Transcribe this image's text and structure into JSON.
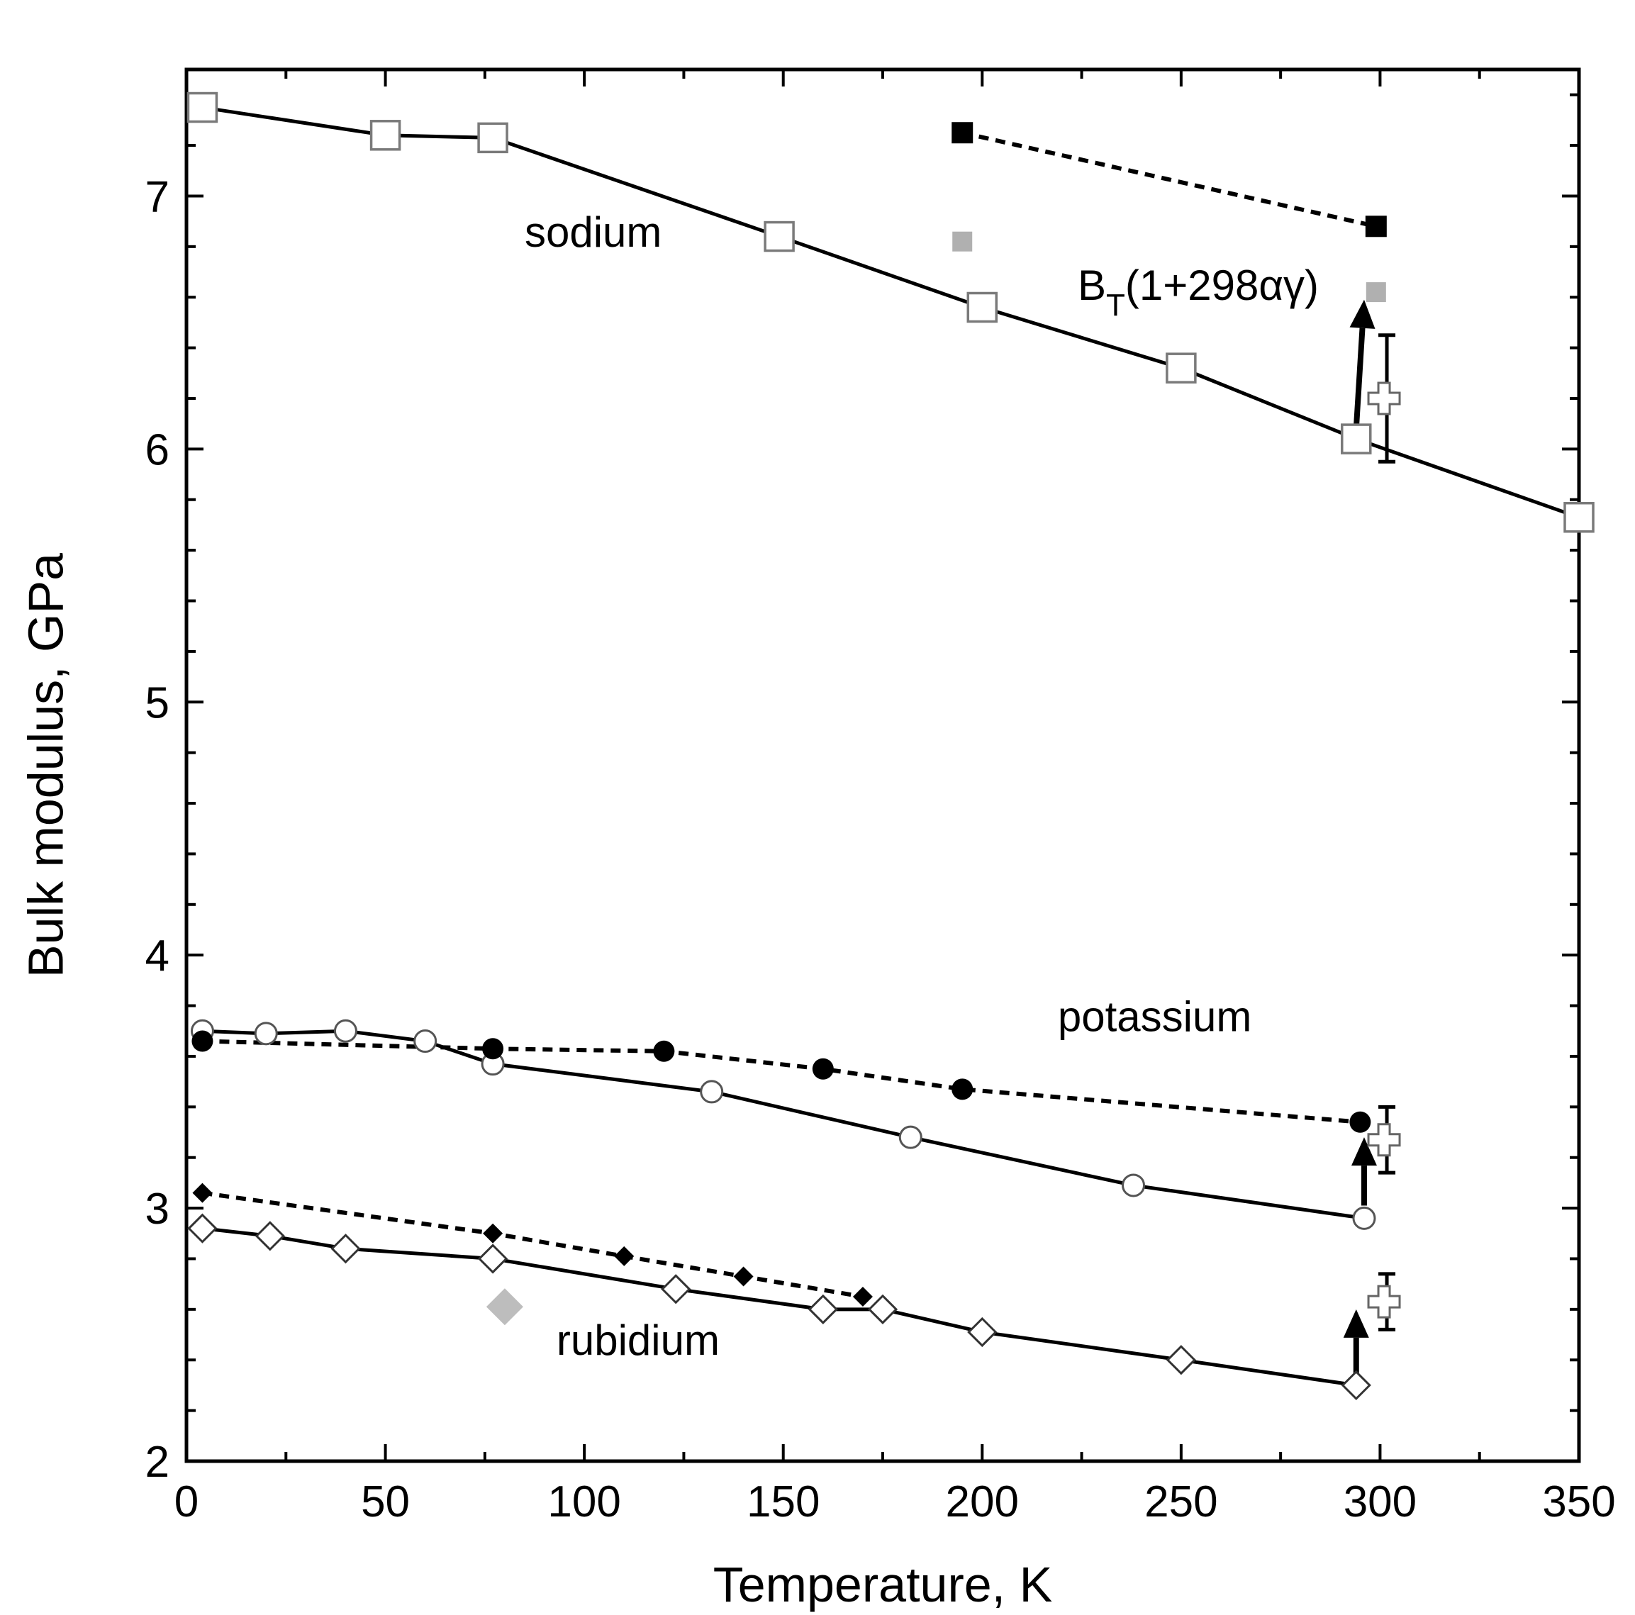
{
  "chart_data": {
    "type": "scatter",
    "title": "",
    "xlabel": "Temperature, K",
    "ylabel": "Bulk modulus, GPa",
    "xlim": [
      0,
      350
    ],
    "ylim": [
      2,
      7.5
    ],
    "xticks": [
      0,
      50,
      100,
      150,
      200,
      250,
      300,
      350
    ],
    "yticks": [
      2,
      3,
      4,
      5,
      6,
      7
    ],
    "xtick_labels": [
      "0",
      "50",
      "100",
      "150",
      "200",
      "250",
      "300",
      "350"
    ],
    "ytick_labels": [
      "2",
      "3",
      "4",
      "5",
      "6",
      "7"
    ],
    "grid": false,
    "annotations": [
      {
        "text": "sodium",
        "x": 85,
        "y": 6.8
      },
      {
        "text": "potassium",
        "x": 219,
        "y": 3.7
      },
      {
        "text": "rubidium",
        "x": 93,
        "y": 2.42
      },
      {
        "text": "B",
        "sub": "T",
        "rest": "(1+298αγ)",
        "x": 224,
        "y": 6.59
      }
    ],
    "series": [
      {
        "name": "sodium open squares",
        "marker": "open-square",
        "line": "solid",
        "color": "#000000",
        "x": [
          4,
          50,
          77,
          149,
          200,
          250,
          294,
          350
        ],
        "y": [
          7.35,
          7.24,
          7.23,
          6.84,
          6.56,
          6.32,
          6.04,
          5.73
        ]
      },
      {
        "name": "sodium filled squares",
        "marker": "filled-square",
        "line": "dotted",
        "color": "#000000",
        "x": [
          195,
          299
        ],
        "y": [
          7.25,
          6.88
        ]
      },
      {
        "name": "sodium gray squares",
        "marker": "gray-square",
        "line": "none",
        "color": "#b0b0b0",
        "x": [
          195,
          299
        ],
        "y": [
          6.82,
          6.62
        ]
      },
      {
        "name": "sodium cross",
        "marker": "open-cross",
        "line": "none",
        "color": "#000000",
        "x": [
          301
        ],
        "y": [
          6.2
        ],
        "err": [
          0.25
        ]
      },
      {
        "name": "potassium open circles",
        "marker": "open-circle",
        "line": "solid",
        "color": "#000000",
        "x": [
          4,
          20,
          40,
          60,
          77,
          132,
          182,
          238,
          296
        ],
        "y": [
          3.7,
          3.69,
          3.7,
          3.66,
          3.57,
          3.46,
          3.28,
          3.09,
          2.96
        ]
      },
      {
        "name": "potassium filled circles",
        "marker": "filled-circle",
        "line": "dotted",
        "color": "#000000",
        "x": [
          4,
          77,
          120,
          160,
          195,
          295
        ],
        "y": [
          3.66,
          3.63,
          3.62,
          3.55,
          3.47,
          3.34
        ]
      },
      {
        "name": "potassium cross",
        "marker": "open-cross",
        "line": "none",
        "color": "#000000",
        "x": [
          301
        ],
        "y": [
          3.27
        ],
        "err": [
          0.13
        ]
      },
      {
        "name": "rubidium open diamonds",
        "marker": "open-diamond",
        "line": "solid",
        "color": "#000000",
        "x": [
          4,
          21,
          40,
          77,
          123,
          160,
          175,
          200,
          250,
          294
        ],
        "y": [
          2.92,
          2.89,
          2.84,
          2.8,
          2.68,
          2.6,
          2.6,
          2.51,
          2.4,
          2.3
        ]
      },
      {
        "name": "rubidium filled diamonds",
        "marker": "filled-diamond",
        "line": "dotted",
        "color": "#000000",
        "x": [
          4,
          77,
          110,
          140,
          170
        ],
        "y": [
          3.06,
          2.9,
          2.81,
          2.73,
          2.65
        ]
      },
      {
        "name": "rubidium gray diamond",
        "marker": "gray-diamond",
        "line": "none",
        "color": "#b0b0b0",
        "x": [
          80
        ],
        "y": [
          2.61
        ]
      },
      {
        "name": "rubidium cross",
        "marker": "open-cross",
        "line": "none",
        "color": "#000000",
        "x": [
          301
        ],
        "y": [
          2.63
        ],
        "err": [
          0.11
        ]
      }
    ],
    "arrows": [
      {
        "name": "sodium",
        "from": [
          294,
          6.08
        ],
        "to": [
          296,
          6.59
        ]
      },
      {
        "name": "potassium",
        "from": [
          296,
          3.01
        ],
        "to": [
          296,
          3.28
        ]
      },
      {
        "name": "rubidium",
        "from": [
          294,
          2.33
        ],
        "to": [
          294,
          2.6
        ]
      }
    ]
  }
}
